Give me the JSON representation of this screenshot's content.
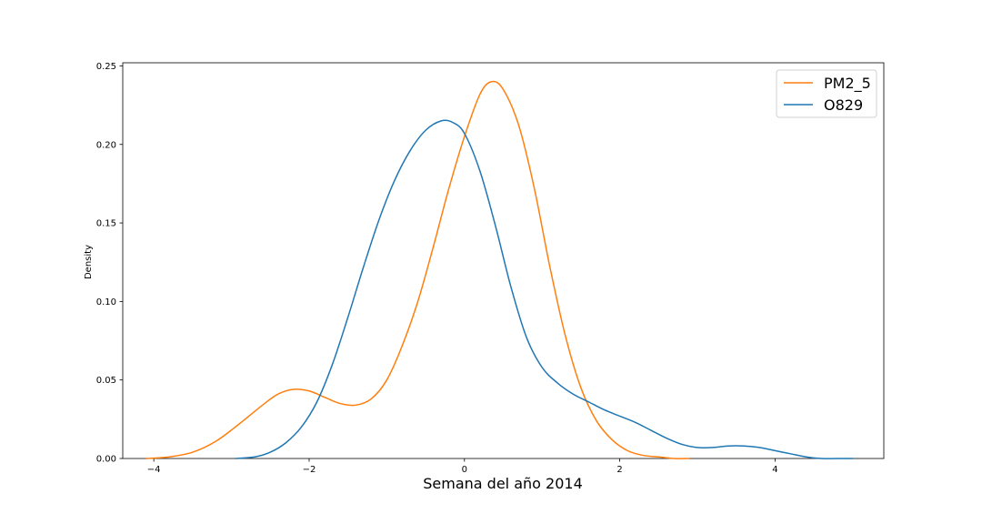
{
  "chart_data": {
    "type": "line",
    "title": "",
    "xlabel": "Semana del año 2014",
    "ylabel": "Density",
    "xlim": [
      -4.4,
      5.4
    ],
    "ylim": [
      0,
      0.252
    ],
    "xticks": [
      -4,
      -2,
      0,
      2,
      4
    ],
    "xtick_labels": [
      "−4",
      "−2",
      "0",
      "2",
      "4"
    ],
    "yticks": [
      0.0,
      0.05,
      0.1,
      0.15,
      0.2,
      0.25
    ],
    "ytick_labels": [
      "0.00",
      "0.05",
      "0.10",
      "0.15",
      "0.20",
      "0.25"
    ],
    "grid": false,
    "legend_position": "top-right",
    "series": [
      {
        "name": "PM2_5",
        "color": "#ff7f0e",
        "x": [
          -4.1,
          -3.8,
          -3.5,
          -3.2,
          -2.9,
          -2.6,
          -2.4,
          -2.2,
          -2.0,
          -1.8,
          -1.6,
          -1.4,
          -1.2,
          -1.0,
          -0.8,
          -0.6,
          -0.4,
          -0.2,
          0.0,
          0.2,
          0.35,
          0.5,
          0.7,
          0.9,
          1.1,
          1.3,
          1.5,
          1.7,
          1.9,
          2.1,
          2.3,
          2.5,
          2.7,
          2.9
        ],
        "y": [
          0.0,
          0.001,
          0.004,
          0.011,
          0.022,
          0.034,
          0.041,
          0.044,
          0.043,
          0.039,
          0.035,
          0.034,
          0.038,
          0.05,
          0.072,
          0.1,
          0.135,
          0.172,
          0.205,
          0.232,
          0.24,
          0.235,
          0.212,
          0.172,
          0.122,
          0.078,
          0.045,
          0.024,
          0.012,
          0.005,
          0.002,
          0.001,
          0.0,
          0.0
        ]
      },
      {
        "name": "O829",
        "color": "#1f77b4",
        "x": [
          -2.95,
          -2.7,
          -2.5,
          -2.3,
          -2.1,
          -1.9,
          -1.7,
          -1.5,
          -1.3,
          -1.1,
          -0.9,
          -0.7,
          -0.5,
          -0.3,
          -0.15,
          0.0,
          0.2,
          0.4,
          0.6,
          0.8,
          1.0,
          1.2,
          1.4,
          1.6,
          1.8,
          2.0,
          2.2,
          2.4,
          2.6,
          2.8,
          3.0,
          3.2,
          3.4,
          3.6,
          3.8,
          4.0,
          4.2,
          4.4,
          4.6,
          4.8,
          5.0
        ],
        "y": [
          0.0,
          0.001,
          0.004,
          0.01,
          0.02,
          0.036,
          0.06,
          0.09,
          0.122,
          0.152,
          0.177,
          0.196,
          0.209,
          0.215,
          0.214,
          0.207,
          0.183,
          0.148,
          0.109,
          0.077,
          0.058,
          0.048,
          0.041,
          0.036,
          0.031,
          0.027,
          0.023,
          0.018,
          0.013,
          0.009,
          0.007,
          0.007,
          0.008,
          0.008,
          0.007,
          0.005,
          0.003,
          0.001,
          0.0,
          0.0,
          0.0
        ]
      }
    ]
  }
}
